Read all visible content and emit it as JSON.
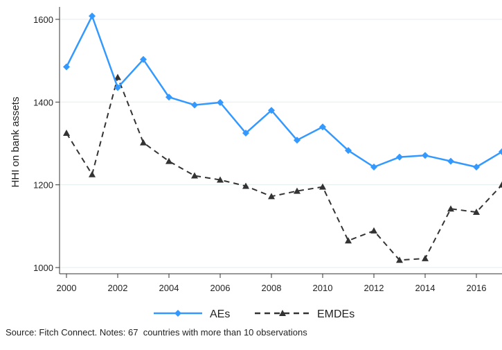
{
  "chart_data": {
    "type": "line",
    "x": [
      2000,
      2001,
      2002,
      2003,
      2004,
      2005,
      2006,
      2007,
      2008,
      2009,
      2010,
      2011,
      2012,
      2013,
      2014,
      2015,
      2016,
      2017
    ],
    "series": [
      {
        "name": "AEs",
        "color": "#3399ff",
        "marker": "diamond",
        "line_style": "solid",
        "values": [
          1485,
          1608,
          1435,
          1503,
          1412,
          1393,
          1399,
          1325,
          1380,
          1308,
          1340,
          1283,
          1243,
          1267,
          1271,
          1257,
          1243,
          1280
        ]
      },
      {
        "name": "EMDEs",
        "color": "#333333",
        "marker": "triangle",
        "line_style": "dashed",
        "values": [
          1325,
          1225,
          1460,
          1302,
          1257,
          1222,
          1212,
          1197,
          1172,
          1185,
          1195,
          1065,
          1089,
          1018,
          1022,
          1142,
          1134,
          1200
        ]
      }
    ],
    "ylabel": "HHI on bank assets",
    "xlabel": "",
    "title": "",
    "ylim": [
      985,
      1630
    ],
    "yticks": [
      1000,
      1200,
      1400,
      1600
    ],
    "xticks": [
      2000,
      2002,
      2004,
      2006,
      2008,
      2010,
      2012,
      2014,
      2016
    ],
    "xlim": [
      2000,
      2017
    ],
    "grid": "horizontal",
    "legend_position": "bottom"
  },
  "note": "Source: Fitch Connect. Notes: 67  countries with more than 10 observations"
}
